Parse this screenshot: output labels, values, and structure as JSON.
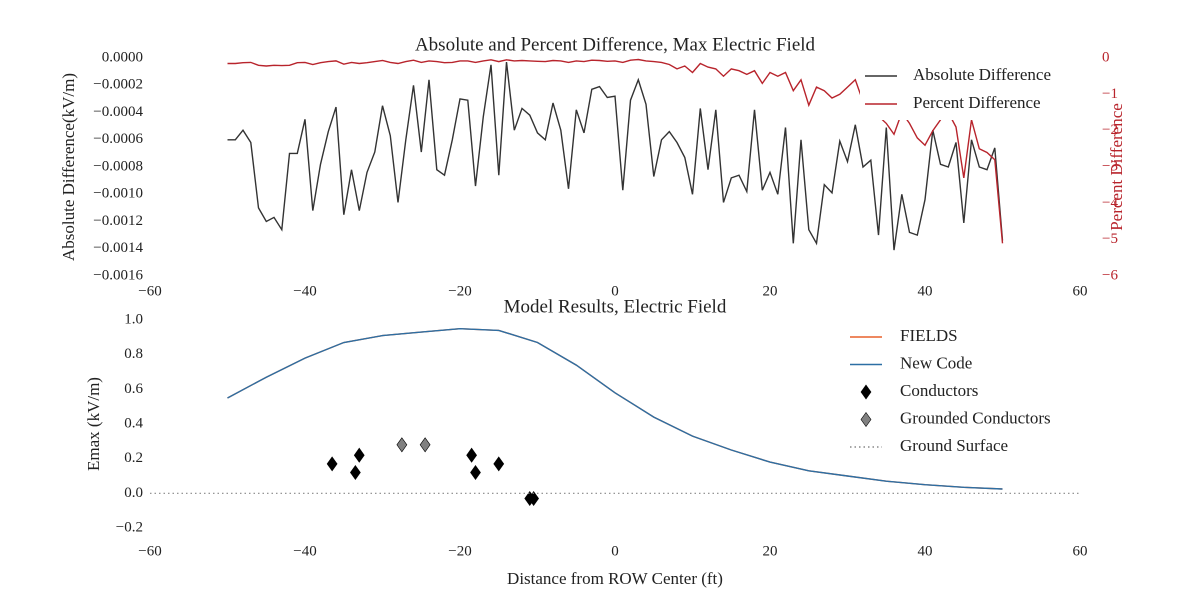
{
  "chart_data": [
    {
      "type": "line",
      "title": "Absolute and Percent Difference, Max Electric Field",
      "ylabel": "Absolute Difference(kV/m)",
      "y2label": "Percent Difference",
      "legend": "upper right",
      "xlim": [
        -60,
        60
      ],
      "xticks": [
        {
          "value": -60,
          "label": "−60"
        },
        {
          "value": -40,
          "label": "−40"
        },
        {
          "value": -20,
          "label": "−20"
        },
        0,
        20,
        40,
        60
      ],
      "ylim": [
        -0.0016,
        0.0
      ],
      "yticks": [
        {
          "value": 0.0,
          "label": "0.0000"
        },
        {
          "value": -0.0002,
          "label": "−0.0002"
        },
        {
          "value": -0.0004,
          "label": "−0.0004"
        },
        {
          "value": -0.0006,
          "label": "−0.0006"
        },
        {
          "value": -0.0008,
          "label": "−0.0008"
        },
        {
          "value": -0.001,
          "label": "−0.0010"
        },
        {
          "value": -0.0012,
          "label": "−0.0012"
        },
        {
          "value": -0.0014,
          "label": "−0.0014"
        },
        {
          "value": -0.0016,
          "label": "−0.0016"
        }
      ],
      "y2lim": [
        -6,
        0
      ],
      "y2ticks": [
        0,
        {
          "value": -1,
          "label": "−1"
        },
        {
          "value": -2,
          "label": "−2"
        },
        {
          "value": -3,
          "label": "−3"
        },
        {
          "value": -4,
          "label": "−4"
        },
        {
          "value": -5,
          "label": "−5"
        },
        {
          "value": -6,
          "label": "−6"
        }
      ],
      "x": [
        -50,
        -49,
        -48,
        -47,
        -46,
        -45,
        -44,
        -43,
        -42,
        -41,
        -40,
        -39,
        -38,
        -37,
        -36,
        -35,
        -34,
        -33,
        -32,
        -31,
        -30,
        -29,
        -28,
        -27,
        -26,
        -25,
        -24,
        -23,
        -22,
        -21,
        -20,
        -19,
        -18,
        -17,
        -16,
        -15,
        -14,
        -13,
        -12,
        -11,
        -10,
        -9,
        -8,
        -7,
        -6,
        -5,
        -4,
        -3,
        -2,
        -1,
        0,
        1,
        2,
        3,
        4,
        5,
        6,
        7,
        8,
        9,
        10,
        11,
        12,
        13,
        14,
        15,
        16,
        17,
        18,
        19,
        20,
        21,
        22,
        23,
        24,
        25,
        26,
        27,
        28,
        29,
        30,
        31,
        32,
        33,
        34,
        35,
        36,
        37,
        38,
        39,
        40,
        41,
        42,
        43,
        44,
        45,
        46,
        47,
        48,
        49,
        50
      ],
      "series": [
        {
          "name": "Absolute Difference",
          "color": "#333333",
          "axis": "y",
          "values": [
            -0.0006,
            -0.0006,
            -0.00053,
            -0.00062,
            -0.0011,
            -0.0012,
            -0.00117,
            -0.00126,
            -0.0007,
            -0.0007,
            -0.00045,
            -0.00112,
            -0.00078,
            -0.00054,
            -0.00036,
            -0.00115,
            -0.00082,
            -0.00112,
            -0.00084,
            -0.00069,
            -0.00035,
            -0.00057,
            -0.00106,
            -0.0006,
            -0.0002,
            -0.00069,
            -0.00016,
            -0.00082,
            -0.00086,
            -0.0006,
            -0.0003,
            -0.00031,
            -0.00094,
            -0.00043,
            -5e-05,
            -0.00086,
            -3e-05,
            -0.00053,
            -0.00037,
            -0.00042,
            -0.00055,
            -0.0006,
            -0.00033,
            -0.00053,
            -0.00096,
            -0.00038,
            -0.00055,
            -0.00023,
            -0.00021,
            -0.00029,
            -0.00028,
            -0.00097,
            -0.00031,
            -0.00016,
            -0.00034,
            -0.00087,
            -0.0006,
            -0.00054,
            -0.00062,
            -0.00073,
            -0.001,
            -0.00037,
            -0.00082,
            -0.00038,
            -0.00106,
            -0.00088,
            -0.00086,
            -0.00098,
            -0.00038,
            -0.00097,
            -0.00084,
            -0.001,
            -0.00051,
            -0.00136,
            -0.0006,
            -0.00126,
            -0.00136,
            -0.00093,
            -0.00099,
            -0.00061,
            -0.00076,
            -0.00049,
            -0.0008,
            -0.00075,
            -0.0013,
            -0.00051,
            -0.00141,
            -0.001,
            -0.00128,
            -0.0013,
            -0.00104,
            -0.00053,
            -0.00078,
            -0.0008,
            -0.00062,
            -0.00121,
            -0.0006,
            -0.0008,
            -0.00082,
            -0.00066,
            -0.00134
          ]
        },
        {
          "name": "Percent Difference",
          "color": "#b8242c",
          "axis": "y2",
          "values": [
            -0.15,
            -0.15,
            -0.13,
            -0.12,
            -0.2,
            -0.22,
            -0.2,
            -0.21,
            -0.2,
            -0.13,
            -0.12,
            -0.18,
            -0.13,
            -0.1,
            -0.08,
            -0.17,
            -0.12,
            -0.15,
            -0.13,
            -0.1,
            -0.07,
            -0.12,
            -0.15,
            -0.1,
            -0.06,
            -0.12,
            -0.08,
            -0.1,
            -0.13,
            -0.12,
            -0.08,
            -0.08,
            -0.12,
            -0.08,
            -0.05,
            -0.1,
            -0.05,
            -0.08,
            -0.07,
            -0.08,
            -0.09,
            -0.1,
            -0.07,
            -0.08,
            -0.12,
            -0.08,
            -0.1,
            -0.06,
            -0.07,
            -0.09,
            -0.08,
            -0.12,
            -0.06,
            -0.04,
            -0.08,
            -0.1,
            -0.12,
            -0.18,
            -0.3,
            -0.22,
            -0.4,
            -0.15,
            -0.25,
            -0.3,
            -0.5,
            -0.3,
            -0.35,
            -0.45,
            -0.35,
            -0.7,
            -0.4,
            -0.5,
            -0.4,
            -0.9,
            -0.6,
            -1.3,
            -0.8,
            -0.9,
            -1.1,
            -1.0,
            -0.8,
            -0.6,
            -1.2,
            -0.7,
            -1.6,
            -1.8,
            -2.1,
            -1.5,
            -1.8,
            -2.2,
            -2.4,
            -2.0,
            -1.7,
            -1.5,
            -1.9,
            -3.3,
            -1.7,
            -2.5,
            -2.6,
            -2.8,
            -5.1
          ]
        }
      ]
    },
    {
      "type": "line",
      "title": "Model Results, Electric Field",
      "xlabel": "Distance from ROW Center (ft)",
      "ylabel": "Emax (kV/m)",
      "legend": "upper right",
      "xlim": [
        -60,
        60
      ],
      "xticks": [
        {
          "value": -60,
          "label": "−60"
        },
        {
          "value": -40,
          "label": "−40"
        },
        {
          "value": -20,
          "label": "−20"
        },
        0,
        20,
        40,
        60
      ],
      "ylim": [
        -0.2,
        1.0
      ],
      "yticks": [
        {
          "value": -0.2,
          "label": "−0.2"
        },
        {
          "value": 0.0,
          "label": "0.0"
        },
        0.2,
        0.4,
        0.6,
        0.8,
        {
          "value": 1.0,
          "label": "1.0"
        }
      ],
      "series": [
        {
          "name": "FIELDS",
          "color": "#e8602c",
          "x": [
            -50,
            -45,
            -40,
            -35,
            -30,
            -25,
            -20,
            -15,
            -10,
            -5,
            0,
            5,
            10,
            15,
            20,
            25,
            30,
            35,
            40,
            45,
            50
          ],
          "values": [
            0.55,
            0.67,
            0.78,
            0.87,
            0.91,
            0.93,
            0.95,
            0.94,
            0.87,
            0.74,
            0.58,
            0.44,
            0.33,
            0.25,
            0.18,
            0.13,
            0.1,
            0.07,
            0.05,
            0.035,
            0.025
          ]
        },
        {
          "name": "New Code",
          "color": "#2c6fa4",
          "x": [
            -50,
            -45,
            -40,
            -35,
            -30,
            -25,
            -20,
            -15,
            -10,
            -5,
            0,
            5,
            10,
            15,
            20,
            25,
            30,
            35,
            40,
            45,
            50
          ],
          "values": [
            0.55,
            0.67,
            0.78,
            0.87,
            0.91,
            0.93,
            0.95,
            0.94,
            0.87,
            0.74,
            0.58,
            0.44,
            0.33,
            0.25,
            0.18,
            0.13,
            0.1,
            0.07,
            0.05,
            0.035,
            0.025
          ]
        },
        {
          "name": "Conductors",
          "color": "#000000",
          "marker": "diamond",
          "x": [
            -36.5,
            -33.5,
            -33,
            -18.5,
            -18,
            -15,
            -11,
            -10.5
          ],
          "values": [
            0.17,
            0.12,
            0.22,
            0.22,
            0.12,
            0.17,
            -0.03,
            -0.03
          ]
        },
        {
          "name": "Grounded Conductors",
          "color": "#808080",
          "marker": "diamond",
          "x": [
            -27.5,
            -24.5
          ],
          "values": [
            0.28,
            0.28
          ]
        },
        {
          "name": "Ground Surface",
          "color": "#888888",
          "dash": "dotted",
          "x": [
            -60,
            60
          ],
          "values": [
            0,
            0
          ]
        }
      ]
    }
  ]
}
